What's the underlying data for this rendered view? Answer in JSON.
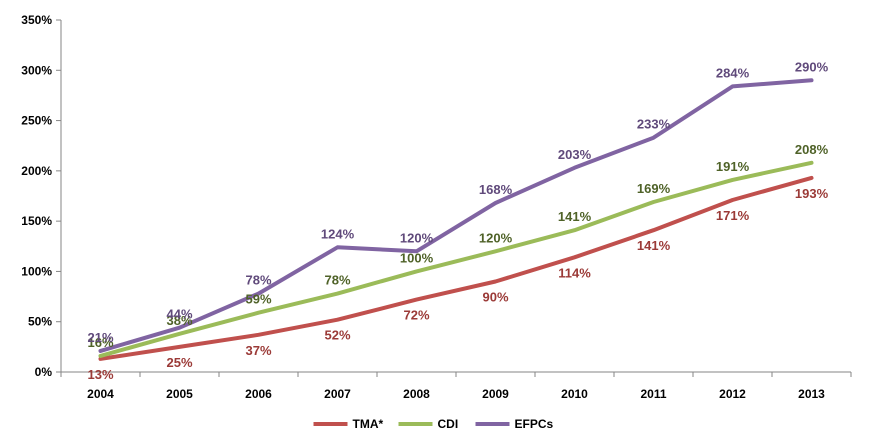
{
  "chart_data": {
    "type": "line",
    "title": "",
    "xlabel": "",
    "ylabel": "",
    "categories": [
      "2004",
      "2005",
      "2006",
      "2007",
      "2008",
      "2009",
      "2010",
      "2011",
      "2012",
      "2013"
    ],
    "ylim": [
      0,
      350
    ],
    "y_ticks": [
      0,
      50,
      100,
      150,
      200,
      250,
      300,
      350
    ],
    "y_tick_labels": [
      "0%",
      "50%",
      "100%",
      "150%",
      "200%",
      "250%",
      "300%",
      "350%"
    ],
    "grid": false,
    "legend_position": "bottom",
    "series": [
      {
        "name": "TMA*",
        "color": "#c0504d",
        "label_color": "#9b3a37",
        "label_position": "below",
        "values": [
          13,
          25,
          37,
          52,
          72,
          90,
          114,
          141,
          171,
          193
        ],
        "labels": [
          "13%",
          "25%",
          "37%",
          "52%",
          "72%",
          "90%",
          "114%",
          "141%",
          "171%",
          "193%"
        ]
      },
      {
        "name": "CDI",
        "color": "#9bbb59",
        "label_color": "#4f6228",
        "label_position": "above",
        "values": [
          16,
          38,
          59,
          78,
          100,
          120,
          141,
          169,
          191,
          208
        ],
        "labels": [
          "16%",
          "38%",
          "59%",
          "78%",
          "100%",
          "120%",
          "141%",
          "169%",
          "191%",
          "208%"
        ]
      },
      {
        "name": "EFPCs",
        "color": "#8064a2",
        "label_color": "#604a7b",
        "label_position": "above",
        "values": [
          21,
          44,
          78,
          124,
          120,
          168,
          203,
          233,
          284,
          290
        ],
        "labels": [
          "21%",
          "44%",
          "78%",
          "124%",
          "120%",
          "168%",
          "203%",
          "233%",
          "284%",
          "290%"
        ]
      }
    ]
  }
}
